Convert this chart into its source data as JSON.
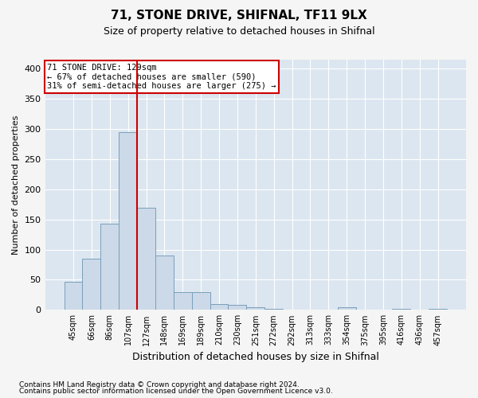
{
  "title1": "71, STONE DRIVE, SHIFNAL, TF11 9LX",
  "title2": "Size of property relative to detached houses in Shifnal",
  "xlabel": "Distribution of detached houses by size in Shifnal",
  "ylabel": "Number of detached properties",
  "footer1": "Contains HM Land Registry data © Crown copyright and database right 2024.",
  "footer2": "Contains public sector information licensed under the Open Government Licence v3.0.",
  "bins": [
    "45sqm",
    "66sqm",
    "86sqm",
    "107sqm",
    "127sqm",
    "148sqm",
    "169sqm",
    "189sqm",
    "210sqm",
    "230sqm",
    "251sqm",
    "272sqm",
    "292sqm",
    "313sqm",
    "333sqm",
    "354sqm",
    "375sqm",
    "395sqm",
    "416sqm",
    "436sqm",
    "457sqm"
  ],
  "values": [
    47,
    85,
    143,
    295,
    170,
    90,
    30,
    30,
    10,
    8,
    5,
    2,
    0,
    0,
    0,
    5,
    0,
    0,
    2,
    0,
    2
  ],
  "bar_color": "#ccd9e8",
  "bar_edge_color": "#7aa0bb",
  "bg_color": "#dce6f0",
  "grid_color": "#ffffff",
  "vline_color": "#cc0000",
  "vline_index": 4,
  "annotation_text": "71 STONE DRIVE: 129sqm\n← 67% of detached houses are smaller (590)\n31% of semi-detached houses are larger (275) →",
  "annotation_box_color": "#ffffff",
  "annotation_box_edge": "#cc0000",
  "ylim": [
    0,
    415
  ],
  "yticks": [
    0,
    50,
    100,
    150,
    200,
    250,
    300,
    350,
    400
  ],
  "title1_fontsize": 11,
  "title2_fontsize": 9,
  "ylabel_fontsize": 8,
  "xlabel_fontsize": 9,
  "tick_fontsize": 8,
  "xtick_fontsize": 7,
  "footer_fontsize": 6.5,
  "fig_bg": "#f5f5f5"
}
